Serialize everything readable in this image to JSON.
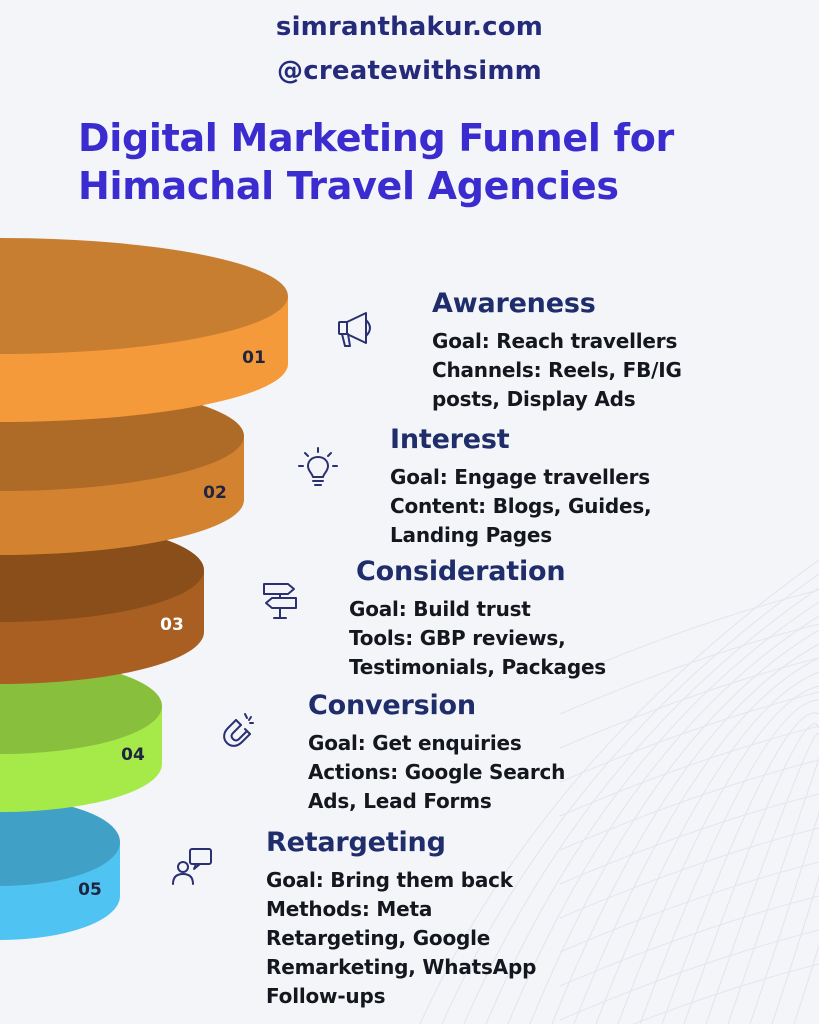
{
  "header": {
    "site": "simranthakur.com",
    "handle": "@createwithsimm",
    "title_line1": "Digital Marketing Funnel for",
    "title_line2": "Himachal Travel Agencies"
  },
  "colors": {
    "background": "#f4f5f9",
    "header_text": "#252b7a",
    "title_text": "#3a2ccf",
    "stage_title_text": "#1f2d6b"
  },
  "stages": [
    {
      "number": "01",
      "title": "Awareness",
      "icon": "megaphone-icon",
      "color": "#f49a3a",
      "lines": [
        "Goal: Reach travellers",
        "Channels: Reels, FB/IG",
        "posts, Display Ads"
      ]
    },
    {
      "number": "02",
      "title": "Interest",
      "icon": "lightbulb-icon",
      "color": "#d3832f",
      "lines": [
        "Goal: Engage travellers",
        "Content: Blogs, Guides,",
        "Landing Pages"
      ]
    },
    {
      "number": "03",
      "title": "Consideration",
      "icon": "signpost-icon",
      "color": "#a85f21",
      "lines": [
        "Goal: Build trust",
        "Tools: GBP reviews,",
        "Testimonials, Packages"
      ]
    },
    {
      "number": "04",
      "title": "Conversion",
      "icon": "magnet-icon",
      "color": "#a6ea4a",
      "lines": [
        "Goal: Get enquiries",
        "Actions: Google Search",
        "Ads, Lead Forms"
      ]
    },
    {
      "number": "05",
      "title": "Retargeting",
      "icon": "user-chat-icon",
      "color": "#4fc3f2",
      "lines": [
        "Goal: Bring them back",
        "Methods: Meta",
        "Retargeting, Google",
        "Remarketing, WhatsApp",
        "Follow-ups"
      ]
    }
  ]
}
